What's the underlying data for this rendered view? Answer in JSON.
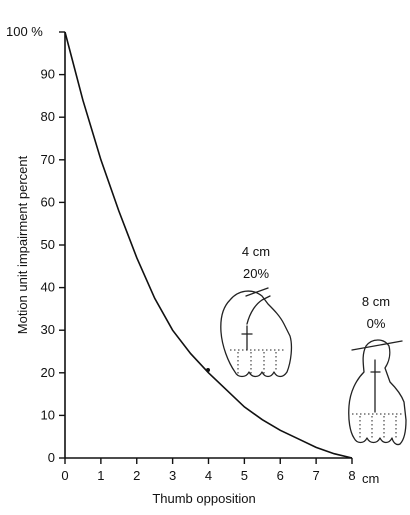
{
  "chart_data": {
    "type": "line",
    "xlabel": "Thumb opposition",
    "ylabel": "Motion unit impairment percent",
    "xlim": [
      0,
      8
    ],
    "ylim": [
      0,
      100
    ],
    "x_ticks": [
      "0",
      "1",
      "2",
      "3",
      "4",
      "5",
      "6",
      "7",
      "8"
    ],
    "x_unit_label": "cm",
    "y_ticks": [
      "0",
      "10",
      "20",
      "30",
      "40",
      "50",
      "60",
      "70",
      "80",
      "90",
      "100 %"
    ],
    "grid": false,
    "series": [
      {
        "x": [
          0,
          0.5,
          1,
          1.5,
          2,
          2.5,
          3,
          3.5,
          4,
          4.5,
          5,
          5.5,
          6,
          6.5,
          7,
          7.5,
          8
        ],
        "y": [
          100,
          84,
          70,
          58,
          47,
          37.5,
          30,
          24.5,
          20,
          16,
          12,
          9,
          6.5,
          4.5,
          2.5,
          1,
          0
        ]
      }
    ],
    "annotations": [
      {
        "x": 4,
        "y": 20,
        "lines": [
          "4 cm",
          "20%"
        ],
        "icon": "hand-thumb-opposition-icon"
      },
      {
        "x": 8,
        "y": 0,
        "lines": [
          "8 cm",
          "0%"
        ],
        "icon": "hand-thumb-extended-icon"
      }
    ]
  }
}
